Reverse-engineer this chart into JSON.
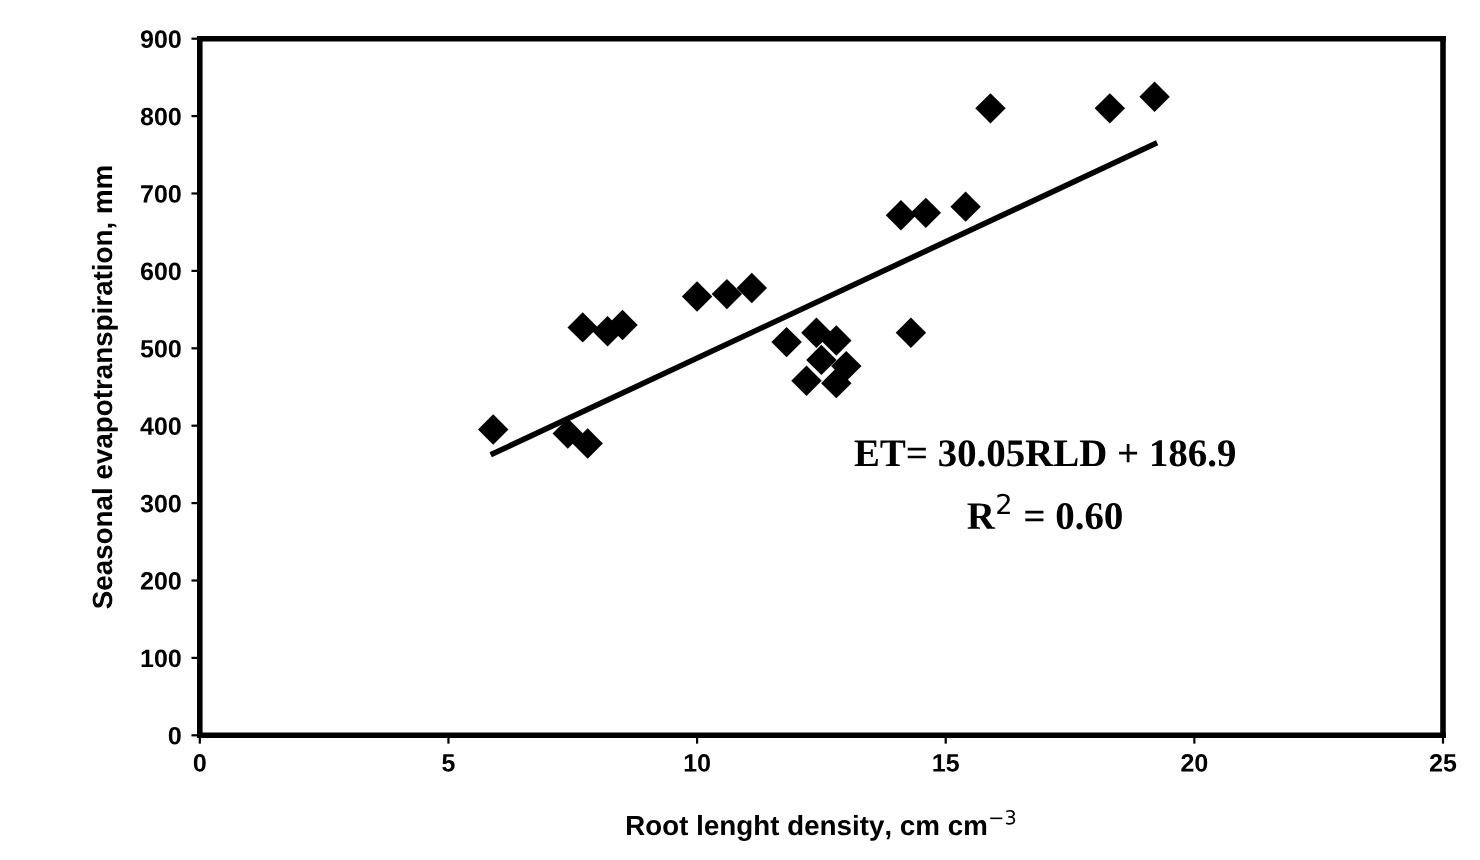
{
  "chart_data": {
    "type": "scatter",
    "xlabel": "Root lenght density, cm cm$^{−3}$",
    "ylabel": "Seasonal evapotranspiration, mm",
    "xlim": [
      0,
      25
    ],
    "xticks": [
      0,
      5,
      10,
      15,
      20,
      25
    ],
    "ylim": [
      0,
      900
    ],
    "yticks": [
      0,
      100,
      200,
      300,
      400,
      500,
      600,
      700,
      800,
      900
    ],
    "grid": false,
    "legend": false,
    "series": [
      {
        "color": "#000000",
        "marker": "diamond",
        "x": [
          5.9,
          7.4,
          7.8,
          7.7,
          8.2,
          8.5,
          10.0,
          10.6,
          11.1,
          11.8,
          12.4,
          12.8,
          12.5,
          12.2,
          12.8,
          13.0,
          14.3,
          14.1,
          14.6,
          15.4,
          15.9,
          18.3,
          19.2
        ],
        "values": [
          395,
          390,
          377,
          527,
          522,
          530,
          567,
          570,
          578,
          508,
          520,
          510,
          485,
          458,
          455,
          477,
          520,
          672,
          675,
          683,
          810,
          810,
          825
        ]
      },
      {
        "type": "line",
        "color": "#000000",
        "marker": "none",
        "line_style": "solid",
        "x": [
          5.9,
          19.2
        ],
        "values": [
          364,
          764
        ]
      }
    ],
    "annotations": [
      "ET= 30.05RLD + 186.9",
      "R$^{2}$ = 0.60"
    ]
  }
}
